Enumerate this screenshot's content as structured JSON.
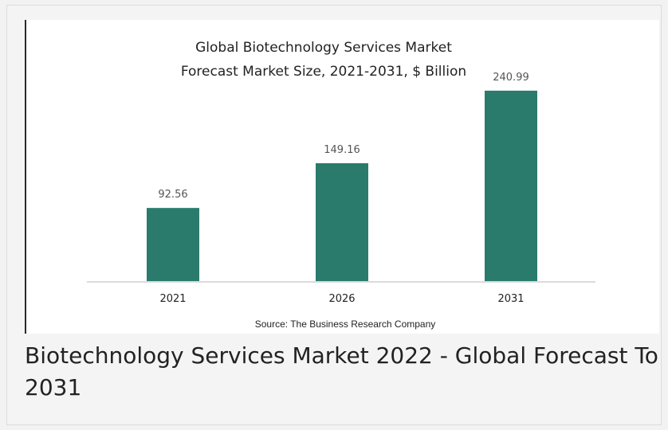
{
  "chart_data": {
    "type": "bar",
    "title": "Global Biotechnology Services Market",
    "subtitle": "Forecast Market Size, 2021-2031, $ Billion",
    "categories": [
      "2021",
      "2026",
      "2031"
    ],
    "values": [
      92.56,
      149.16,
      240.99
    ],
    "value_labels": [
      "92.56",
      "149.16",
      "240.99"
    ],
    "xlabel": "",
    "ylabel": "",
    "ylim": [
      0,
      260
    ],
    "grid": false,
    "legend": "none",
    "bar_color": "#2a7b6c",
    "source": "Source: The Business Research Company"
  },
  "caption": "Biotechnology Services Market 2022 - Global Forecast To 2031"
}
